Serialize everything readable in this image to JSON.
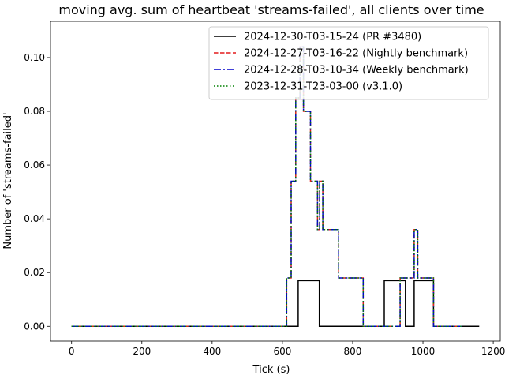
{
  "chart_data": {
    "type": "line",
    "title": "moving avg. sum of heartbeat 'streams-failed', all clients over time",
    "xlabel": "Tick (s)",
    "ylabel": "Number of 'streams-failed'",
    "xlim": [
      -60,
      1220
    ],
    "ylim": [
      -0.0055,
      0.1135
    ],
    "xticks": [
      0,
      200,
      400,
      600,
      800,
      1000,
      1200
    ],
    "yticks": [
      0.0,
      0.02,
      0.04,
      0.06,
      0.08,
      0.1
    ],
    "ytick_labels": [
      "0.00",
      "0.02",
      "0.04",
      "0.06",
      "0.08",
      "0.10"
    ],
    "grid": false,
    "legend_position": "top-right",
    "series": [
      {
        "name": "2024-12-30-T03-15-24 (PR #3480)",
        "color": "#000000",
        "dash": "solid",
        "x": [
          0,
          645,
          645,
          705,
          705,
          890,
          890,
          950,
          950,
          975,
          975,
          1030,
          1030,
          1160
        ],
        "y": [
          0,
          0,
          0.017,
          0.017,
          0,
          0,
          0.017,
          0.017,
          0,
          0,
          0.017,
          0.017,
          0,
          0
        ]
      },
      {
        "name": "2024-12-27-T03-16-22 (Nightly benchmark)",
        "color": "#e41a1c",
        "dash": "dashed",
        "x": [
          0,
          612,
          612,
          625,
          625,
          638,
          638,
          650,
          650,
          660,
          660,
          680,
          680,
          700,
          700,
          706,
          706,
          715,
          715,
          760,
          760,
          770,
          770,
          830,
          830,
          935,
          935,
          950,
          950,
          975,
          975,
          985,
          985,
          1030,
          1030,
          1110
        ],
        "y": [
          0,
          0,
          0.018,
          0.018,
          0.054,
          0.054,
          0.085,
          0.085,
          0.104,
          0.104,
          0.08,
          0.08,
          0.054,
          0.054,
          0.036,
          0.036,
          0.054,
          0.054,
          0.036,
          0.036,
          0.018,
          0.018,
          0.018,
          0.018,
          0,
          0,
          0.018,
          0.018,
          0.018,
          0.018,
          0.036,
          0.036,
          0.018,
          0.018,
          0,
          0
        ]
      },
      {
        "name": "2024-12-28-T03-10-34 (Weekly benchmark)",
        "color": "#0000cc",
        "dash": "dashdot",
        "x": [
          0,
          612,
          612,
          625,
          625,
          638,
          638,
          650,
          650,
          660,
          660,
          680,
          680,
          700,
          700,
          706,
          706,
          715,
          715,
          760,
          760,
          770,
          770,
          830,
          830,
          935,
          935,
          950,
          950,
          975,
          975,
          985,
          985,
          1030,
          1030,
          1110
        ],
        "y": [
          0,
          0,
          0.018,
          0.018,
          0.054,
          0.054,
          0.085,
          0.085,
          0.104,
          0.104,
          0.08,
          0.08,
          0.054,
          0.054,
          0.036,
          0.036,
          0.054,
          0.054,
          0.036,
          0.036,
          0.018,
          0.018,
          0.018,
          0.018,
          0,
          0,
          0.018,
          0.018,
          0.018,
          0.018,
          0.036,
          0.036,
          0.018,
          0.018,
          0,
          0
        ]
      },
      {
        "name": "2023-12-31-T23-03-00 (v3.1.0)",
        "color": "#008000",
        "dash": "dotted",
        "x": [
          0,
          612,
          612,
          625,
          625,
          638,
          638,
          650,
          650,
          660,
          660,
          680,
          680,
          700,
          700,
          706,
          706,
          715,
          715,
          760,
          760,
          770,
          770,
          830,
          830,
          935,
          935,
          950,
          950,
          975,
          975,
          985,
          985,
          1030,
          1030,
          1110
        ],
        "y": [
          0,
          0,
          0.018,
          0.018,
          0.054,
          0.054,
          0.085,
          0.085,
          0.104,
          0.104,
          0.08,
          0.08,
          0.054,
          0.054,
          0.036,
          0.036,
          0.054,
          0.054,
          0.036,
          0.036,
          0.018,
          0.018,
          0.018,
          0.018,
          0,
          0,
          0.018,
          0.018,
          0.018,
          0.018,
          0.036,
          0.036,
          0.018,
          0.018,
          0,
          0
        ]
      }
    ]
  }
}
